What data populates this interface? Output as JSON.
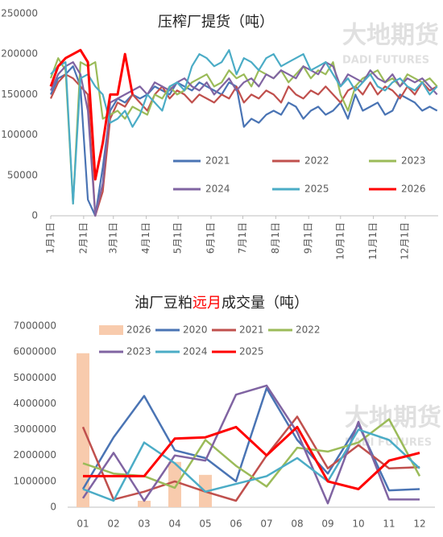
{
  "watermark": {
    "name": "大地期货",
    "sub": "DADI FUTURES"
  },
  "chart_data": [
    {
      "type": "line",
      "title": "压榨厂提货（吨）",
      "x": [
        1,
        8,
        15,
        22,
        29,
        36,
        43,
        50,
        57,
        64,
        71,
        78,
        85,
        92,
        99,
        106,
        113,
        120,
        127,
        134,
        141,
        148,
        155,
        162,
        169,
        176,
        183,
        190,
        197,
        204,
        211,
        218,
        225,
        232,
        239,
        246,
        253,
        260,
        267,
        274,
        281,
        288,
        295,
        302,
        309,
        316,
        323,
        330,
        337,
        344,
        351,
        358,
        365
      ],
      "xlim": [
        1,
        366
      ],
      "xticks": [
        {
          "value": 1,
          "label": "1月1日"
        },
        {
          "value": 32,
          "label": "2月1日"
        },
        {
          "value": 60,
          "label": "3月1日"
        },
        {
          "value": 91,
          "label": "4月1日"
        },
        {
          "value": 121,
          "label": "5月1日"
        },
        {
          "value": 152,
          "label": "6月1日"
        },
        {
          "value": 182,
          "label": "7月1日"
        },
        {
          "value": 213,
          "label": "8月1日"
        },
        {
          "value": 244,
          "label": "9月1日"
        },
        {
          "value": 274,
          "label": "10月1日"
        },
        {
          "value": 305,
          "label": "11月1日"
        },
        {
          "value": 335,
          "label": "12月1日"
        }
      ],
      "ylim": [
        0,
        250000
      ],
      "yticks": [
        0,
        50000,
        100000,
        150000,
        200000,
        250000
      ],
      "series": [
        {
          "name": "2021",
          "color": "#4a74b4",
          "values": [
            150000,
            170000,
            175000,
            185000,
            160000,
            20000,
            0,
            60000,
            130000,
            145000,
            140000,
            150000,
            145000,
            150000,
            160000,
            155000,
            150000,
            165000,
            160000,
            155000,
            165000,
            160000,
            155000,
            150000,
            165000,
            160000,
            110000,
            120000,
            115000,
            125000,
            130000,
            125000,
            140000,
            135000,
            120000,
            130000,
            135000,
            125000,
            130000,
            140000,
            120000,
            150000,
            130000,
            135000,
            140000,
            125000,
            130000,
            150000,
            145000,
            140000,
            130000,
            135000,
            130000
          ]
        },
        {
          "name": "2022",
          "color": "#c0504d",
          "values": [
            145000,
            165000,
            175000,
            170000,
            160000,
            150000,
            0,
            30000,
            120000,
            140000,
            135000,
            150000,
            140000,
            130000,
            150000,
            160000,
            145000,
            155000,
            150000,
            140000,
            150000,
            145000,
            140000,
            150000,
            145000,
            160000,
            140000,
            150000,
            145000,
            155000,
            150000,
            140000,
            160000,
            150000,
            145000,
            155000,
            150000,
            160000,
            150000,
            140000,
            155000,
            160000,
            150000,
            165000,
            150000,
            160000,
            155000,
            145000,
            160000,
            150000,
            165000,
            155000,
            160000
          ]
        },
        {
          "name": "2023",
          "color": "#9bbb59",
          "values": [
            170000,
            195000,
            180000,
            15000,
            190000,
            185000,
            190000,
            120000,
            125000,
            130000,
            120000,
            135000,
            130000,
            125000,
            150000,
            145000,
            160000,
            150000,
            155000,
            165000,
            170000,
            175000,
            160000,
            165000,
            180000,
            170000,
            175000,
            160000,
            180000,
            175000,
            170000,
            180000,
            165000,
            175000,
            185000,
            170000,
            180000,
            175000,
            190000,
            150000,
            130000,
            160000,
            170000,
            175000,
            180000,
            165000,
            170000,
            160000,
            175000,
            170000,
            165000,
            170000,
            160000
          ]
        },
        {
          "name": "2024",
          "color": "#8064a2",
          "values": [
            155000,
            175000,
            185000,
            190000,
            175000,
            130000,
            0,
            40000,
            140000,
            145000,
            150000,
            155000,
            160000,
            150000,
            165000,
            160000,
            155000,
            165000,
            170000,
            160000,
            155000,
            165000,
            150000,
            160000,
            170000,
            155000,
            165000,
            170000,
            160000,
            175000,
            170000,
            180000,
            175000,
            170000,
            185000,
            180000,
            175000,
            190000,
            185000,
            160000,
            175000,
            170000,
            165000,
            180000,
            170000,
            165000,
            175000,
            160000,
            170000,
            165000,
            170000,
            160000,
            150000
          ]
        },
        {
          "name": "2025",
          "color": "#4bacc6",
          "values": [
            175000,
            185000,
            190000,
            15000,
            170000,
            175000,
            160000,
            150000,
            115000,
            120000,
            130000,
            110000,
            125000,
            150000,
            140000,
            130000,
            160000,
            165000,
            155000,
            185000,
            200000,
            195000,
            185000,
            190000,
            205000,
            175000,
            195000,
            190000,
            180000,
            195000,
            200000,
            185000,
            190000,
            195000,
            200000,
            180000,
            185000,
            190000,
            175000,
            160000,
            170000,
            155000,
            165000,
            175000,
            160000,
            155000,
            165000,
            170000,
            160000,
            155000,
            165000,
            150000,
            160000
          ]
        },
        {
          "name": "2026",
          "color": "#ff0000",
          "x": [
            1,
            8,
            15,
            22,
            29,
            36,
            43,
            50,
            57,
            64,
            71,
            78
          ],
          "values": [
            160000,
            185000,
            195000,
            200000,
            205000,
            190000,
            45000,
            90000,
            150000,
            150000,
            200000,
            150000
          ]
        }
      ]
    },
    {
      "type": "combo",
      "title_parts": [
        {
          "text": "油厂豆粕",
          "color": "#222222"
        },
        {
          "text": "远月",
          "color": "#ff0000"
        },
        {
          "text": "成交量（吨）",
          "color": "#222222"
        }
      ],
      "categories": [
        "01",
        "02",
        "03",
        "04",
        "05",
        "06",
        "07",
        "08",
        "09",
        "10",
        "11",
        "12"
      ],
      "ylim": [
        0,
        7000000
      ],
      "yticks": [
        0,
        1000000,
        2000000,
        3000000,
        4000000,
        5000000,
        6000000,
        7000000
      ],
      "series": [
        {
          "name": "2026",
          "type": "bar",
          "color": "#f8cbad",
          "values": [
            5950000,
            null,
            250000,
            1750000,
            1250000,
            null,
            null,
            null,
            null,
            null,
            null,
            null
          ]
        },
        {
          "name": "2020",
          "type": "line",
          "color": "#4a74b4",
          "values": [
            700000,
            2700000,
            4300000,
            2200000,
            1900000,
            1000000,
            4600000,
            2600000,
            1300000,
            3200000,
            650000,
            700000
          ]
        },
        {
          "name": "2021",
          "type": "line",
          "color": "#c0504d",
          "values": [
            3100000,
            300000,
            600000,
            1000000,
            600000,
            250000,
            2000000,
            3500000,
            1500000,
            2400000,
            1500000,
            1550000
          ]
        },
        {
          "name": "2022",
          "type": "line",
          "color": "#9bbb59",
          "values": [
            1700000,
            1300000,
            1200000,
            750000,
            2600000,
            1600000,
            800000,
            2300000,
            2150000,
            2500000,
            3400000,
            1200000
          ]
        },
        {
          "name": "2023",
          "type": "line",
          "color": "#8064a2",
          "values": [
            350000,
            2100000,
            250000,
            2000000,
            1800000,
            4350000,
            4700000,
            2900000,
            150000,
            3300000,
            300000,
            300000
          ]
        },
        {
          "name": "2024",
          "type": "line",
          "color": "#4bacc6",
          "values": [
            700000,
            250000,
            2500000,
            1700000,
            600000,
            900000,
            1200000,
            1900000,
            1000000,
            3000000,
            2600000,
            1500000
          ]
        },
        {
          "name": "2025",
          "type": "line",
          "color": "#ff0000",
          "values": [
            1200000,
            1200000,
            1200000,
            2650000,
            2700000,
            3100000,
            2000000,
            3100000,
            1000000,
            700000,
            1800000,
            2100000
          ]
        }
      ]
    }
  ]
}
